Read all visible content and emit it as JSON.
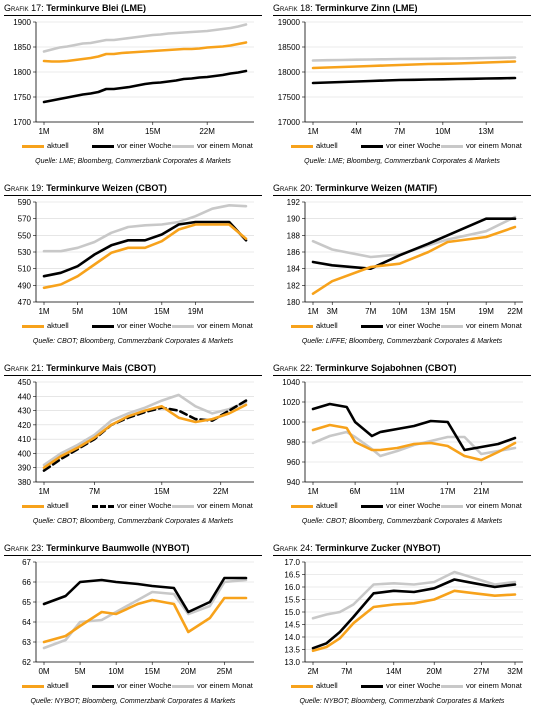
{
  "panels": [
    {
      "prefix": "Grafik 17:",
      "title": "Terminkurve Blei (LME)",
      "source": "Quelle: LME; Bloomberg, Commerzbank Corporates & Markets",
      "chart_data": {
        "type": "line",
        "x": [
          1,
          2,
          3,
          4,
          5,
          6,
          7,
          8,
          9,
          10,
          11,
          12,
          13,
          14,
          15,
          16,
          17,
          18,
          19,
          20,
          21,
          22,
          23,
          24,
          25,
          26,
          27
        ],
        "xticks": [
          1,
          8,
          15,
          22
        ],
        "xtick_labels": [
          "1M",
          "8M",
          "15M",
          "22M"
        ],
        "ylim": [
          1700,
          1900
        ],
        "yticks": [
          1700,
          1750,
          1800,
          1850,
          1900
        ],
        "series": [
          {
            "name": "aktuell",
            "color": "#f7a21b",
            "values": [
              1822,
              1821,
              1821,
              1822,
              1824,
              1826,
              1828,
              1831,
              1836,
              1836,
              1838,
              1839,
              1840,
              1841,
              1842,
              1843,
              1844,
              1845,
              1846,
              1846,
              1847,
              1849,
              1850,
              1851,
              1853,
              1856,
              1859
            ]
          },
          {
            "name": "vor einer Woche",
            "color": "#000000",
            "values": [
              1740,
              1743,
              1746,
              1749,
              1752,
              1755,
              1757,
              1760,
              1766,
              1766,
              1768,
              1770,
              1773,
              1776,
              1778,
              1779,
              1781,
              1783,
              1786,
              1787,
              1789,
              1790,
              1792,
              1794,
              1797,
              1799,
              1802
            ]
          },
          {
            "name": "vor einem Monat",
            "color": "#c8c8c8",
            "values": [
              1841,
              1845,
              1849,
              1851,
              1854,
              1857,
              1858,
              1861,
              1864,
              1864,
              1866,
              1868,
              1870,
              1872,
              1874,
              1875,
              1877,
              1878,
              1879,
              1880,
              1881,
              1882,
              1884,
              1886,
              1888,
              1891,
              1895
            ]
          }
        ]
      }
    },
    {
      "prefix": "Grafik 18:",
      "title": "Terminkurve Zinn (LME)",
      "source": "Quelle: LME; Bloomberg, Commerzbank Corporates & Markets",
      "chart_data": {
        "type": "line",
        "x": [
          1,
          2,
          3,
          4,
          5,
          6,
          7,
          8,
          9,
          10,
          11,
          12,
          13,
          14,
          15
        ],
        "xticks": [
          1,
          4,
          7,
          10,
          13
        ],
        "xtick_labels": [
          "1M",
          "4M",
          "7M",
          "10M",
          "13M"
        ],
        "ylim": [
          17000,
          19000
        ],
        "yticks": [
          17000,
          17500,
          18000,
          18500,
          19000
        ],
        "series": [
          {
            "name": "aktuell",
            "color": "#f7a21b",
            "values": [
              18080,
              18090,
              18100,
              18110,
              18120,
              18130,
              18140,
              18150,
              18160,
              18165,
              18170,
              18180,
              18190,
              18200,
              18210
            ]
          },
          {
            "name": "vor einer Woche",
            "color": "#000000",
            "values": [
              17780,
              17790,
              17800,
              17810,
              17820,
              17830,
              17840,
              17845,
              17850,
              17855,
              17860,
              17865,
              17870,
              17875,
              17880
            ]
          },
          {
            "name": "vor einem Monat",
            "color": "#c8c8c8",
            "values": [
              18230,
              18235,
              18240,
              18245,
              18250,
              18255,
              18260,
              18262,
              18265,
              18268,
              18270,
              18275,
              18280,
              18285,
              18290
            ]
          }
        ]
      }
    },
    {
      "prefix": "Grafik 19:",
      "title": "Terminkurve Weizen (CBOT)",
      "source": "Quelle: CBOT; Bloomberg, Commerzbank Corporates & Markets",
      "chart_data": {
        "type": "line",
        "x": [
          1,
          3,
          5,
          7,
          9,
          11,
          13,
          15,
          17,
          19,
          21,
          23,
          25
        ],
        "xticks": [
          1,
          5,
          10,
          15,
          19
        ],
        "xtick_labels": [
          "1M",
          "5M",
          "10M",
          "15M",
          "19M"
        ],
        "ylim": [
          470,
          590
        ],
        "yticks": [
          470,
          490,
          510,
          530,
          550,
          570,
          590
        ],
        "series": [
          {
            "name": "aktuell",
            "color": "#f7a21b",
            "values": [
              487,
              491,
              501,
              515,
              529,
              535,
              535,
              543,
              557,
              563,
              563,
              563,
              546
            ]
          },
          {
            "name": "vor einer Woche",
            "color": "#000000",
            "values": [
              501,
              505,
              513,
              527,
              538,
              544,
              544,
              551,
              563,
              566,
              566,
              566,
              544
            ]
          },
          {
            "name": "vor einem Monat",
            "color": "#c8c8c8",
            "values": [
              531,
              531,
              535,
              542,
              553,
              560,
              562,
              563,
              566,
              573,
              582,
              586,
              585
            ]
          }
        ]
      }
    },
    {
      "prefix": "Grafik 20:",
      "title": "Terminkurve Weizen (MATIF)",
      "source": "Quelle: LIFFE; Bloomberg, Commerzbank Corporates & Markets",
      "chart_data": {
        "type": "line",
        "x": [
          1,
          3,
          7,
          10,
          13,
          15,
          19,
          22
        ],
        "xticks": [
          1,
          3,
          7,
          10,
          13,
          15,
          19,
          22
        ],
        "xtick_labels": [
          "1M",
          "3M",
          "7M",
          "10M",
          "13M",
          "15M",
          "19M",
          "22M"
        ],
        "ylim": [
          180,
          192
        ],
        "yticks": [
          180,
          182,
          184,
          186,
          188,
          190,
          192
        ],
        "series": [
          {
            "name": "aktuell",
            "color": "#f7a21b",
            "values": [
              181,
              182.5,
              184.2,
              184.6,
              186,
              187.2,
              187.8,
              189
            ]
          },
          {
            "name": "vor einer Woche",
            "color": "#000000",
            "values": [
              184.8,
              184.4,
              184,
              185.6,
              187,
              188,
              190,
              190
            ]
          },
          {
            "name": "vor einem Monat",
            "color": "#c8c8c8",
            "values": [
              187.3,
              186.3,
              185.4,
              185.7,
              186.8,
              187.5,
              188.5,
              190.2
            ]
          }
        ]
      }
    },
    {
      "prefix": "Grafik 21:",
      "title": "Terminkurve Mais (CBOT)",
      "source": "Quelle: CBOT; Bloomberg, Commerzbank Corporates & Markets",
      "chart_data": {
        "type": "line",
        "x": [
          1,
          3,
          5,
          7,
          9,
          11,
          13,
          15,
          17,
          19,
          21,
          23,
          25
        ],
        "xticks": [
          1,
          7,
          15,
          22
        ],
        "xtick_labels": [
          "1M",
          "7M",
          "15M",
          "22M"
        ],
        "ylim": [
          380,
          450
        ],
        "yticks": [
          380,
          390,
          400,
          410,
          420,
          430,
          440,
          450
        ],
        "series": [
          {
            "name": "aktuell",
            "color": "#f7a21b",
            "dash": false,
            "values": [
              390,
              398,
              404,
              411,
              420,
              426,
              430,
              433,
              425,
              422,
              424,
              428,
              434
            ]
          },
          {
            "name": "vor einer Woche",
            "color": "#000000",
            "dash": true,
            "values": [
              388,
              396,
              403,
              410,
              420,
              425,
              429,
              432,
              430,
              424,
              423,
              430,
              437
            ]
          },
          {
            "name": "vor einem Monat",
            "color": "#c8c8c8",
            "dash": false,
            "values": [
              392,
              400,
              406,
              413,
              423,
              428,
              432,
              437,
              441,
              433,
              428,
              431,
              436
            ]
          }
        ]
      }
    },
    {
      "prefix": "Grafik 22:",
      "title": "Terminkurve Sojabohnen (CBOT)",
      "source": "Quelle: CBOT; Bloomberg, Commerzbank Corporates & Markets",
      "chart_data": {
        "type": "line",
        "x": [
          1,
          3,
          5,
          6,
          8,
          9,
          11,
          13,
          15,
          17,
          19,
          21,
          23,
          25
        ],
        "xticks": [
          1,
          6,
          11,
          17,
          21
        ],
        "xtick_labels": [
          "1M",
          "6M",
          "11M",
          "17M",
          "21M"
        ],
        "ylim": [
          940,
          1040
        ],
        "yticks": [
          940,
          960,
          980,
          1000,
          1020,
          1040
        ],
        "series": [
          {
            "name": "aktuell",
            "color": "#f7a21b",
            "values": [
              992,
              997,
              994,
              980,
              972,
              972,
              974,
              978,
              979,
              976,
              966,
              962,
              970,
              979
            ]
          },
          {
            "name": "vor einer Woche",
            "color": "#000000",
            "values": [
              1013,
              1018,
              1015,
              1000,
              986,
              990,
              993,
              996,
              1001,
              1000,
              972,
              975,
              978,
              984
            ]
          },
          {
            "name": "vor einem Monat",
            "color": "#c8c8c8",
            "values": [
              979,
              986,
              990,
              985,
              973,
              966,
              971,
              977,
              981,
              985,
              985,
              968,
              971,
              974
            ]
          }
        ]
      }
    },
    {
      "prefix": "Grafik 23:",
      "title": "Terminkurve Baumwolle (NYBOT)",
      "source": "Quelle: NYBOT; Bloomberg, Commerzbank Corporates & Markets",
      "chart_data": {
        "type": "line",
        "x": [
          0,
          3,
          5,
          8,
          10,
          13,
          15,
          18,
          20,
          23,
          25,
          28
        ],
        "xticks": [
          0,
          5,
          10,
          15,
          20,
          25
        ],
        "xtick_labels": [
          "0M",
          "5M",
          "10M",
          "15M",
          "20M",
          "25M"
        ],
        "ylim": [
          62,
          67
        ],
        "yticks": [
          62,
          63,
          64,
          65,
          66,
          67
        ],
        "series": [
          {
            "name": "aktuell",
            "color": "#f7a21b",
            "values": [
              63.0,
              63.3,
              63.8,
              64.5,
              64.4,
              64.9,
              65.1,
              64.9,
              63.5,
              64.2,
              65.2,
              65.2
            ]
          },
          {
            "name": "vor einer Woche",
            "color": "#000000",
            "values": [
              64.9,
              65.3,
              66.0,
              66.1,
              66.0,
              65.9,
              65.8,
              65.7,
              64.5,
              65.0,
              66.2,
              66.2
            ]
          },
          {
            "name": "vor einem Monat",
            "color": "#c8c8c8",
            "values": [
              62.7,
              63.1,
              64.0,
              64.1,
              64.5,
              65.1,
              65.5,
              65.4,
              64.4,
              64.8,
              66.0,
              66.1
            ]
          }
        ]
      }
    },
    {
      "prefix": "Grafik 24:",
      "title": "Terminkurve Zucker (NYBOT)",
      "source": "Quelle: NYBOT; Bloomberg, Commerzbank Corporates & Markets",
      "chart_data": {
        "type": "line",
        "x": [
          2,
          4,
          6,
          8,
          11,
          14,
          17,
          20,
          23,
          26,
          29,
          32
        ],
        "xticks": [
          2,
          7,
          14,
          20,
          27,
          32
        ],
        "xtick_labels": [
          "2M",
          "7M",
          "14M",
          "20M",
          "27M",
          "32M"
        ],
        "ylim": [
          13.0,
          17.0
        ],
        "yticks": [
          13.0,
          13.5,
          14.0,
          14.5,
          15.0,
          15.5,
          16.0,
          16.5,
          17.0
        ],
        "series": [
          {
            "name": "aktuell",
            "color": "#f7a21b",
            "values": [
              13.45,
              13.6,
              13.95,
              14.55,
              15.2,
              15.3,
              15.35,
              15.5,
              15.85,
              15.75,
              15.65,
              15.7
            ]
          },
          {
            "name": "vor einer Woche",
            "color": "#000000",
            "values": [
              13.55,
              13.75,
              14.2,
              14.8,
              15.75,
              15.85,
              15.8,
              15.95,
              16.3,
              16.15,
              16.0,
              16.1
            ]
          },
          {
            "name": "vor einem Monat",
            "color": "#c8c8c8",
            "values": [
              14.75,
              14.9,
              15.0,
              15.3,
              16.1,
              16.15,
              16.1,
              16.2,
              16.6,
              16.35,
              16.1,
              16.2
            ]
          }
        ]
      }
    }
  ]
}
